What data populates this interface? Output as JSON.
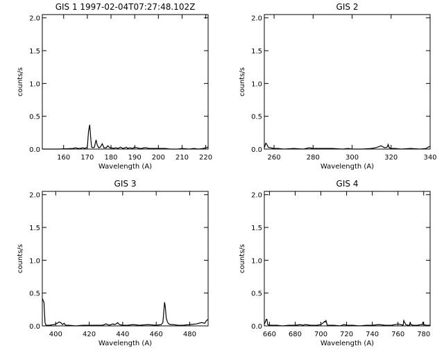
{
  "chart_data": [
    {
      "type": "line",
      "title": "GIS 1 1997-02-04T07:27:48.102Z",
      "xlabel": "Wavelength (A)",
      "ylabel": "counts/s",
      "xlim": [
        151,
        221
      ],
      "ylim": [
        0,
        2.05
      ],
      "xticks": [
        160,
        170,
        180,
        190,
        200,
        210,
        220
      ],
      "yticks": [
        0.0,
        0.5,
        1.0,
        1.5,
        2.0
      ],
      "xtick_labels": [
        "160",
        "170",
        "180",
        "190",
        "200",
        "210",
        "220"
      ],
      "ytick_labels": [
        "0.0",
        "0.5",
        "1.0",
        "1.5",
        "2.0"
      ],
      "grid": false,
      "series": [
        {
          "x": [
            151,
            158,
            164,
            165,
            166,
            167,
            168,
            169,
            170,
            170.5,
            171,
            171.4,
            171.8,
            172.5,
            173,
            173.7,
            174.2,
            174.8,
            175.5,
            176.3,
            177,
            177.5,
            178,
            178.6,
            179.5,
            180.2,
            181,
            182,
            183,
            184,
            185,
            186,
            186.5,
            187,
            188,
            189,
            190,
            191,
            192,
            193,
            194,
            195,
            196,
            197,
            198,
            200,
            203,
            205,
            208,
            210,
            213,
            215,
            217,
            219,
            220,
            221
          ],
          "y": [
            0.0,
            0.0,
            0.01,
            0.02,
            0.01,
            0.01,
            0.02,
            0.01,
            0.03,
            0.27,
            0.37,
            0.18,
            0.03,
            0.02,
            0.03,
            0.14,
            0.06,
            0.02,
            0.03,
            0.08,
            0.02,
            0.02,
            0.02,
            0.05,
            0.02,
            0.02,
            0.01,
            0.02,
            0.01,
            0.03,
            0.01,
            0.02,
            0.03,
            0.01,
            0.02,
            0.01,
            0.03,
            0.02,
            0.01,
            0.01,
            0.02,
            0.02,
            0.01,
            0.01,
            0.01,
            0.01,
            0.01,
            0.0,
            0.0,
            0.01,
            0.0,
            0.01,
            0.0,
            0.01,
            0.02,
            0.03
          ]
        }
      ]
    },
    {
      "type": "line",
      "title": "GIS 2",
      "xlabel": "Wavelength (A)",
      "ylabel": "counts/s",
      "xlim": [
        255,
        340
      ],
      "ylim": [
        0,
        2.05
      ],
      "xticks": [
        260,
        280,
        300,
        320,
        340
      ],
      "yticks": [
        0.0,
        0.5,
        1.0,
        1.5,
        2.0
      ],
      "xtick_labels": [
        "260",
        "280",
        "300",
        "320",
        "340"
      ],
      "ytick_labels": [
        "0.0",
        "0.5",
        "1.0",
        "1.5",
        "2.0"
      ],
      "grid": false,
      "series": [
        {
          "x": [
            255,
            255.8,
            256.3,
            257,
            258,
            260,
            262,
            265,
            270,
            275,
            278,
            280,
            283,
            290,
            295,
            298,
            300,
            305,
            310,
            312,
            313,
            314,
            315,
            316,
            317,
            318,
            318.5,
            319,
            320,
            322,
            325,
            330,
            335,
            338,
            339,
            340
          ],
          "y": [
            0.02,
            0.09,
            0.07,
            0.03,
            0.02,
            0.01,
            0.01,
            0.0,
            0.01,
            0.0,
            0.02,
            0.01,
            0.01,
            0.01,
            0.0,
            0.01,
            0.0,
            0.0,
            0.01,
            0.02,
            0.03,
            0.04,
            0.05,
            0.03,
            0.02,
            0.03,
            0.07,
            0.02,
            0.01,
            0.01,
            0.0,
            0.01,
            0.0,
            0.01,
            0.03,
            0.04
          ]
        }
      ]
    },
    {
      "type": "line",
      "title": "GIS 3",
      "xlabel": "Wavelength (A)",
      "ylabel": "counts/s",
      "xlim": [
        392,
        491
      ],
      "ylim": [
        0,
        2.05
      ],
      "xticks": [
        400,
        420,
        440,
        460,
        480
      ],
      "yticks": [
        0.0,
        0.5,
        1.0,
        1.5,
        2.0
      ],
      "xtick_labels": [
        "400",
        "420",
        "440",
        "460",
        "480"
      ],
      "ytick_labels": [
        "0.0",
        "0.5",
        "1.0",
        "1.5",
        "2.0"
      ],
      "grid": false,
      "series": [
        {
          "x": [
            392,
            392.3,
            392.6,
            393,
            393.6,
            394.2,
            396,
            399,
            401,
            402,
            403,
            404,
            405,
            406,
            408,
            412,
            416,
            420,
            425,
            428,
            430,
            431,
            432,
            434,
            435,
            436,
            437,
            438,
            440,
            443,
            446,
            450,
            455,
            460,
            463,
            464,
            465,
            465.5,
            466,
            466.7,
            467.5,
            468.5,
            470,
            473,
            476,
            480,
            484,
            487,
            489,
            490,
            491
          ],
          "y": [
            0.38,
            0.4,
            0.38,
            0.36,
            0.05,
            0.01,
            0.01,
            0.02,
            0.04,
            0.06,
            0.05,
            0.02,
            0.04,
            0.01,
            0.01,
            0.0,
            0.01,
            0.01,
            0.01,
            0.01,
            0.03,
            0.02,
            0.01,
            0.03,
            0.02,
            0.03,
            0.05,
            0.02,
            0.01,
            0.01,
            0.02,
            0.01,
            0.02,
            0.01,
            0.02,
            0.05,
            0.36,
            0.28,
            0.12,
            0.06,
            0.03,
            0.02,
            0.02,
            0.01,
            0.01,
            0.02,
            0.03,
            0.05,
            0.04,
            0.08,
            0.1
          ]
        }
      ]
    },
    {
      "type": "line",
      "title": "GIS 4",
      "xlabel": "Wavelength (A)",
      "ylabel": "counts/s",
      "xlim": [
        656,
        785
      ],
      "ylim": [
        0,
        2.05
      ],
      "xticks": [
        660,
        680,
        700,
        720,
        740,
        760,
        780
      ],
      "yticks": [
        0.0,
        0.5,
        1.0,
        1.5,
        2.0
      ],
      "xtick_labels": [
        "660",
        "680",
        "700",
        "720",
        "740",
        "760",
        "780"
      ],
      "ytick_labels": [
        "0.0",
        "0.5",
        "1.0",
        "1.5",
        "2.0"
      ],
      "grid": false,
      "series": [
        {
          "x": [
            656,
            657.5,
            658,
            658.7,
            660,
            663,
            666,
            670,
            675,
            680,
            684,
            686,
            688,
            692,
            697,
            700,
            702,
            703,
            703.5,
            704,
            705,
            710,
            715,
            718,
            720,
            725,
            730,
            735,
            740,
            745,
            750,
            755,
            758,
            760,
            762,
            764,
            764.5,
            765,
            766,
            768,
            769,
            769.5,
            770,
            772,
            775,
            778,
            779,
            779.5,
            780,
            782,
            785
          ],
          "y": [
            0.02,
            0.1,
            0.1,
            0.02,
            0.01,
            0.01,
            0.01,
            0.0,
            0.01,
            0.01,
            0.02,
            0.01,
            0.02,
            0.01,
            0.01,
            0.02,
            0.05,
            0.07,
            0.06,
            0.08,
            0.01,
            0.01,
            0.0,
            0.02,
            0.01,
            0.01,
            0.0,
            0.01,
            0.01,
            0.02,
            0.01,
            0.01,
            0.02,
            0.03,
            0.02,
            0.01,
            0.08,
            0.06,
            0.02,
            0.01,
            0.01,
            0.06,
            0.02,
            0.01,
            0.01,
            0.02,
            0.02,
            0.06,
            0.02,
            0.01,
            0.01
          ]
        }
      ]
    }
  ]
}
